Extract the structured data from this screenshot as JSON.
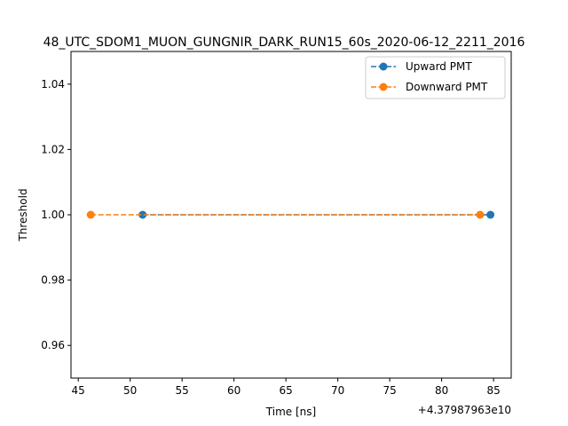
{
  "chart_data": {
    "type": "line",
    "title": "48_UTC_SDOM1_MUON_GUNGNIR_DARK_RUN15_60s_2020-06-12_2211_2016",
    "xlabel": "Time [ns]",
    "ylabel": "Threshold",
    "x_offset_label": "+4.37987963e10",
    "xlim": [
      44.3,
      86.7
    ],
    "ylim": [
      0.95,
      1.05
    ],
    "x_ticks": [
      45,
      50,
      55,
      60,
      65,
      70,
      75,
      80,
      85
    ],
    "x_tick_labels": [
      "45",
      "50",
      "55",
      "60",
      "65",
      "70",
      "75",
      "80",
      "85"
    ],
    "y_ticks": [
      0.96,
      0.98,
      1.0,
      1.02,
      1.04
    ],
    "y_tick_labels": [
      "0.96",
      "0.98",
      "1.00",
      "1.02",
      "1.04"
    ],
    "grid": false,
    "legend_position": "top-right",
    "series": [
      {
        "name": "Upward PMT",
        "x": [
          51.2,
          84.7
        ],
        "y": [
          1.0,
          1.0
        ],
        "color": "#1f77b4",
        "linestyle": "dashed",
        "marker": "circle"
      },
      {
        "name": "Downward PMT",
        "x": [
          46.2,
          83.7
        ],
        "y": [
          1.0,
          1.0
        ],
        "color": "#ff7f0e",
        "linestyle": "dashed",
        "marker": "circle"
      }
    ]
  }
}
